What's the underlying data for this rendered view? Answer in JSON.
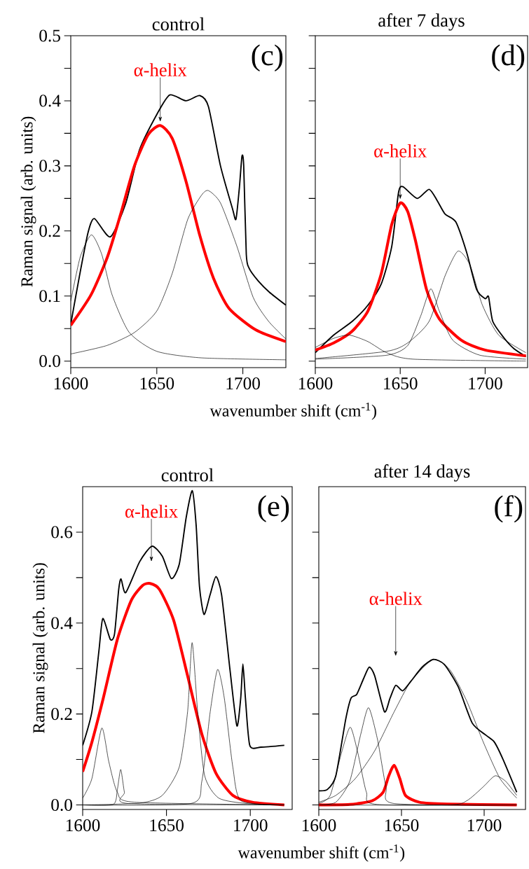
{
  "chart_data": [
    {
      "type": "line",
      "title": "control",
      "ylabel": "Raman signal (arb. units)",
      "xlabel": "wavenumber shift (cm$^{-1}$)",
      "xlim": [
        1600,
        1725
      ],
      "ylim": [
        -0.01,
        0.5
      ],
      "xticks": [
        1600,
        1650,
        1700
      ],
      "yticks": [
        {
          "value": 0,
          "label": "0.0"
        },
        0.1,
        0.2,
        0.3,
        0.4,
        0.5,
        {
          "value": 0.05,
          "label": null
        },
        {
          "value": 0.15,
          "label": null
        },
        {
          "value": 0.25,
          "label": null
        },
        {
          "value": 0.35,
          "label": null
        },
        {
          "value": 0.45,
          "label": null
        }
      ],
      "annotations": [
        "(c)",
        {
          "text": "α-helix",
          "x": 1652,
          "y": 0.362
        }
      ],
      "series": [
        {
          "color": "#000000",
          "x": [
            1600,
            1605,
            1610,
            1613.7,
            1623,
            1632,
            1640,
            1650,
            1657.5,
            1667,
            1675,
            1680,
            1687,
            1694,
            1696,
            1698,
            1699.5,
            1700.5,
            1702,
            1703.6,
            1709,
            1715.4,
            1725
          ],
          "values": [
            0.057,
            0.13,
            0.197,
            0.219,
            0.191,
            0.243,
            0.325,
            0.379,
            0.409,
            0.4,
            0.408,
            0.391,
            0.3,
            0.234,
            0.218,
            0.267,
            0.315,
            0.3,
            0.164,
            0.143,
            0.123,
            0.106,
            0.086
          ]
        },
        {
          "color": "#ff0000",
          "x": [
            1600,
            1611.8,
            1621.3,
            1629,
            1637,
            1645,
            1652,
            1659,
            1667,
            1675,
            1683,
            1692,
            1707.5,
            1725
          ],
          "values": [
            0.055,
            0.102,
            0.16,
            0.226,
            0.3,
            0.348,
            0.362,
            0.342,
            0.276,
            0.193,
            0.127,
            0.081,
            0.048,
            0.03
          ]
        },
        {
          "color": "#000000",
          "x": [
            1600,
            1605.5,
            1612,
            1618,
            1624,
            1634,
            1650,
            1676,
            1725
          ],
          "values": [
            0.092,
            0.16,
            0.194,
            0.164,
            0.102,
            0.044,
            0.015,
            0.005,
            0.002
          ]
        },
        {
          "color": "#000000",
          "x": [
            1600,
            1621,
            1637,
            1650,
            1659,
            1668,
            1676,
            1680,
            1687,
            1696.6,
            1706,
            1715,
            1725
          ],
          "values": [
            0.011,
            0.024,
            0.044,
            0.077,
            0.135,
            0.218,
            0.255,
            0.262,
            0.243,
            0.176,
            0.098,
            0.061,
            0.034
          ]
        }
      ]
    },
    {
      "type": "line",
      "title": "after 7 days",
      "tick_labels": "x",
      "xlim": [
        1600,
        1725
      ],
      "ylim": [
        -0.01,
        0.5
      ],
      "xticks": [
        1600,
        1650,
        1700
      ],
      "yticks": [
        0,
        0.1,
        0.2,
        0.3,
        0.4,
        0.5,
        {
          "value": 0.05,
          "label": null
        },
        {
          "value": 0.15,
          "label": null
        },
        {
          "value": 0.25,
          "label": null
        },
        {
          "value": 0.35,
          "label": null
        },
        {
          "value": 0.45,
          "label": null
        }
      ],
      "annotations": [
        "(d)",
        {
          "text": "α-helix",
          "x": 1650,
          "y": 0.243
        }
      ],
      "series": [
        {
          "color": "#000000",
          "x": [
            1600,
            1610.8,
            1621.7,
            1631,
            1638.9,
            1645,
            1649,
            1651.6,
            1660,
            1667,
            1671.7,
            1676.4,
            1682.7,
            1689,
            1695,
            1700,
            1702,
            1704.5,
            1711,
            1717,
            1724
          ],
          "values": [
            0.013,
            0.04,
            0.061,
            0.086,
            0.119,
            0.176,
            0.259,
            0.268,
            0.25,
            0.264,
            0.247,
            0.226,
            0.214,
            0.168,
            0.11,
            0.096,
            0.099,
            0.061,
            0.036,
            0.019,
            0.007
          ]
        },
        {
          "color": "#ff0000",
          "x": [
            1600,
            1610.8,
            1621.7,
            1631,
            1638.9,
            1645,
            1650,
            1654.4,
            1659,
            1665.5,
            1673,
            1686,
            1700,
            1724
          ],
          "values": [
            0.017,
            0.028,
            0.046,
            0.077,
            0.135,
            0.21,
            0.243,
            0.23,
            0.185,
            0.11,
            0.065,
            0.032,
            0.017,
            0.008
          ]
        },
        {
          "color": "#000000",
          "x": [
            1600,
            1610.8,
            1620,
            1631,
            1642,
            1657.7,
            1724
          ],
          "values": [
            0.021,
            0.035,
            0.04,
            0.03,
            0.013,
            0.003,
            0
          ]
        },
        {
          "color": "#000000",
          "x": [
            1600,
            1642,
            1654.4,
            1662,
            1668,
            1673,
            1681,
            1697,
            1724
          ],
          "values": [
            0.003,
            0.009,
            0.024,
            0.069,
            0.111,
            0.077,
            0.032,
            0.009,
            0.003
          ]
        },
        {
          "color": "#000000",
          "x": [
            1600,
            1642,
            1654.4,
            1667,
            1676.4,
            1684,
            1691,
            1698.4,
            1708,
            1724
          ],
          "values": [
            0.004,
            0.015,
            0.028,
            0.061,
            0.131,
            0.169,
            0.148,
            0.086,
            0.04,
            0.013
          ]
        }
      ]
    },
    {
      "type": "line",
      "title": "control",
      "ylabel": "Raman signal (arb. units)",
      "xlabel": "wavenumber shift (cm$^{-1}$)",
      "xlim": [
        1600,
        1725
      ],
      "ylim": [
        -0.01,
        0.7
      ],
      "xticks": [
        1600,
        1650,
        1700
      ],
      "yticks": [
        {
          "value": 0,
          "label": "0.0"
        },
        0.2,
        0.4,
        0.6,
        {
          "value": 0.1,
          "label": null
        },
        {
          "value": 0.3,
          "label": null
        },
        {
          "value": 0.5,
          "label": null
        }
      ],
      "annotations": [
        "(e)",
        "α-helix"
      ],
      "series": [
        {
          "color": "#000000",
          "x": [
            1600,
            1605.5,
            1609.7,
            1612,
            1616.5,
            1619,
            1621.5,
            1622.9,
            1625.7,
            1634,
            1641.3,
            1647.5,
            1652.9,
            1657.6,
            1661.8,
            1665.4,
            1667.7,
            1669.7,
            1672.4,
            1676,
            1679.5,
            1682.9,
            1687.9,
            1692,
            1694.3,
            1695.6,
            1697.1,
            1699.7,
            1706.4,
            1720.3
          ],
          "values": [
            0.131,
            0.205,
            0.339,
            0.41,
            0.364,
            0.376,
            0.474,
            0.497,
            0.467,
            0.535,
            0.569,
            0.547,
            0.498,
            0.529,
            0.633,
            0.691,
            0.615,
            0.48,
            0.419,
            0.462,
            0.502,
            0.462,
            0.297,
            0.174,
            0.235,
            0.31,
            0.235,
            0.131,
            0.127,
            0.131
          ]
        },
        {
          "color": "#ff0000",
          "x": [
            1600,
            1605.5,
            1612.3,
            1620.7,
            1629,
            1635.8,
            1640.3,
            1645.8,
            1654.2,
            1662.6,
            1671.1,
            1679.5,
            1689.6,
            1701.3,
            1720.3
          ],
          "values": [
            0.073,
            0.138,
            0.235,
            0.364,
            0.45,
            0.483,
            0.487,
            0.474,
            0.407,
            0.284,
            0.156,
            0.07,
            0.021,
            0.006,
            0
          ]
        },
        {
          "color": "#000000",
          "x": [
            1600,
            1605.5,
            1611.4,
            1615.6,
            1620.7,
            1630.8,
            1720.3
          ],
          "values": [
            0.015,
            0.058,
            0.169,
            0.095,
            0.028,
            0.006,
            0
          ]
        },
        {
          "color": "#000000",
          "x": [
            1600,
            1618.2,
            1620.7,
            1622.7,
            1624.9,
            1627.4,
            1720.3
          ],
          "values": [
            0,
            0.001,
            0.034,
            0.078,
            0.028,
            0.003,
            0
          ]
        },
        {
          "color": "#000000",
          "x": [
            1600,
            1634.1,
            1647.5,
            1657.6,
            1662.6,
            1665.3,
            1668.6,
            1672.8,
            1681.2,
            1698,
            1720.3
          ],
          "values": [
            0,
            0.004,
            0.021,
            0.083,
            0.205,
            0.357,
            0.205,
            0.064,
            0.015,
            0.003,
            0
          ]
        },
        {
          "color": "#000000",
          "x": [
            1600,
            1664.4,
            1671.1,
            1676.1,
            1680.5,
            1684.5,
            1689.6,
            1694.6,
            1720.3
          ],
          "values": [
            0,
            0.003,
            0.052,
            0.205,
            0.298,
            0.235,
            0.083,
            0.009,
            0
          ]
        }
      ]
    },
    {
      "type": "line",
      "title": "after 14 days",
      "tick_labels": "x",
      "xlim": [
        1600,
        1725
      ],
      "ylim": [
        -0.01,
        0.7
      ],
      "xticks": [
        1600,
        1650,
        1700
      ],
      "yticks": [
        0,
        0.2,
        0.4,
        0.6,
        {
          "value": 0.1,
          "label": null
        },
        {
          "value": 0.3,
          "label": null
        },
        {
          "value": 0.5,
          "label": null
        }
      ],
      "annotations": [
        "(f)",
        "α-helix"
      ],
      "series": [
        {
          "color": "#000000",
          "x": [
            1600,
            1605.2,
            1610.3,
            1616.2,
            1619.5,
            1622.9,
            1627.1,
            1630.5,
            1633.8,
            1639.7,
            1643.1,
            1646.5,
            1650.7,
            1655.7,
            1662.5,
            1669.2,
            1675.9,
            1684.3,
            1692.8,
            1701.2,
            1706.2,
            1711.3,
            1719.7
          ],
          "values": [
            0.031,
            0.034,
            0.064,
            0.187,
            0.235,
            0.243,
            0.278,
            0.303,
            0.284,
            0.205,
            0.235,
            0.263,
            0.251,
            0.272,
            0.303,
            0.32,
            0.309,
            0.26,
            0.18,
            0.153,
            0.138,
            0.101,
            0.028
          ]
        },
        {
          "color": "#ff0000",
          "x": [
            1600,
            1618.7,
            1632.2,
            1638.9,
            1642.3,
            1645.6,
            1649,
            1652.4,
            1660.8,
            1677.6,
            1719.7
          ],
          "values": [
            0,
            0.001,
            0.009,
            0.028,
            0.064,
            0.087,
            0.058,
            0.021,
            0.006,
            0.002,
            0
          ]
        },
        {
          "color": "#000000",
          "x": [
            1600,
            1606.9,
            1613.6,
            1619,
            1623.7,
            1628.8,
            1635.5,
            1719.7
          ],
          "values": [
            0.003,
            0.021,
            0.113,
            0.171,
            0.113,
            0.028,
            0.001,
            0
          ]
        },
        {
          "color": "#000000",
          "x": [
            1600,
            1610.3,
            1618.7,
            1625.4,
            1630.1,
            1635.5,
            1640.6,
            1645.6,
            1719.7
          ],
          "values": [
            0,
            0.006,
            0.052,
            0.156,
            0.214,
            0.144,
            0.04,
            0.003,
            0
          ]
        },
        {
          "color": "#000000",
          "x": [
            1600,
            1610.3,
            1622.1,
            1633.8,
            1645.6,
            1655.7,
            1669.2,
            1679.3,
            1689.4,
            1699.5,
            1709.6,
            1719.7
          ],
          "values": [
            0.006,
            0.021,
            0.058,
            0.119,
            0.205,
            0.272,
            0.32,
            0.297,
            0.229,
            0.138,
            0.058,
            0.015
          ]
        },
        {
          "color": "#000000",
          "x": [
            1600,
            1677.6,
            1689.4,
            1699.5,
            1706.6,
            1713,
            1719.7
          ],
          "values": [
            0,
            0,
            0.009,
            0.04,
            0.064,
            0.052,
            0.021
          ]
        }
      ]
    }
  ]
}
